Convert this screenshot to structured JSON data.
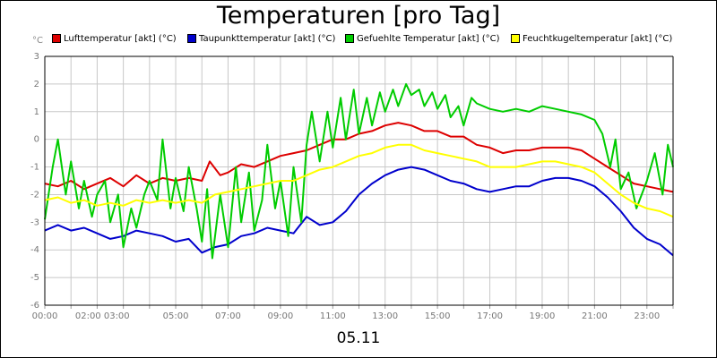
{
  "chart_data": {
    "type": "line",
    "title": "Temperaturen [pro Tag]",
    "date_label": "05.11",
    "ylabel": "°C",
    "ylim": [
      -6,
      3
    ],
    "yticks": [
      "3",
      "2",
      "1",
      "0",
      "-1",
      "-2",
      "-3",
      "-4",
      "-5",
      "-6"
    ],
    "xlim": [
      0,
      24
    ],
    "xticks": [
      {
        "h": 0,
        "label": "00:00"
      },
      {
        "h": 2.2,
        "label": "02:00 03:00"
      },
      {
        "h": 5,
        "label": "05:00"
      },
      {
        "h": 7,
        "label": "07:00"
      },
      {
        "h": 9,
        "label": "09:00"
      },
      {
        "h": 11,
        "label": "11:00"
      },
      {
        "h": 13,
        "label": "13:00"
      },
      {
        "h": 15,
        "label": "15:00"
      },
      {
        "h": 17,
        "label": "17:00"
      },
      {
        "h": 19,
        "label": "19:00"
      },
      {
        "h": 21,
        "label": "21:00"
      },
      {
        "h": 23,
        "label": "23:00"
      }
    ],
    "grid": true,
    "legend_position": "top",
    "series": [
      {
        "name": "Lufttemperatur [akt] (°C)",
        "color": "#dd0000",
        "points": [
          [
            0,
            -1.6
          ],
          [
            0.5,
            -1.7
          ],
          [
            1,
            -1.5
          ],
          [
            1.5,
            -1.8
          ],
          [
            2,
            -1.6
          ],
          [
            2.5,
            -1.4
          ],
          [
            3,
            -1.7
          ],
          [
            3.5,
            -1.3
          ],
          [
            4,
            -1.6
          ],
          [
            4.5,
            -1.4
          ],
          [
            5,
            -1.5
          ],
          [
            5.5,
            -1.4
          ],
          [
            6,
            -1.5
          ],
          [
            6.3,
            -0.8
          ],
          [
            6.7,
            -1.3
          ],
          [
            7,
            -1.2
          ],
          [
            7.5,
            -0.9
          ],
          [
            8,
            -1.0
          ],
          [
            8.5,
            -0.8
          ],
          [
            9,
            -0.6
          ],
          [
            9.5,
            -0.5
          ],
          [
            10,
            -0.4
          ],
          [
            10.5,
            -0.2
          ],
          [
            11,
            0.0
          ],
          [
            11.5,
            0.0
          ],
          [
            12,
            0.2
          ],
          [
            12.5,
            0.3
          ],
          [
            13,
            0.5
          ],
          [
            13.5,
            0.6
          ],
          [
            14,
            0.5
          ],
          [
            14.5,
            0.3
          ],
          [
            15,
            0.3
          ],
          [
            15.5,
            0.1
          ],
          [
            16,
            0.1
          ],
          [
            16.5,
            -0.2
          ],
          [
            17,
            -0.3
          ],
          [
            17.5,
            -0.5
          ],
          [
            18,
            -0.4
          ],
          [
            18.5,
            -0.4
          ],
          [
            19,
            -0.3
          ],
          [
            19.5,
            -0.3
          ],
          [
            20,
            -0.3
          ],
          [
            20.5,
            -0.4
          ],
          [
            21,
            -0.7
          ],
          [
            21.5,
            -1.0
          ],
          [
            22,
            -1.3
          ],
          [
            22.5,
            -1.6
          ],
          [
            23,
            -1.7
          ],
          [
            23.5,
            -1.8
          ],
          [
            24,
            -1.9
          ]
        ]
      },
      {
        "name": "Taupunkttemperatur [akt] (°C)",
        "color": "#0000cc",
        "points": [
          [
            0,
            -3.3
          ],
          [
            0.5,
            -3.1
          ],
          [
            1,
            -3.3
          ],
          [
            1.5,
            -3.2
          ],
          [
            2,
            -3.4
          ],
          [
            2.5,
            -3.6
          ],
          [
            3,
            -3.5
          ],
          [
            3.5,
            -3.3
          ],
          [
            4,
            -3.4
          ],
          [
            4.5,
            -3.5
          ],
          [
            5,
            -3.7
          ],
          [
            5.5,
            -3.6
          ],
          [
            6,
            -4.1
          ],
          [
            6.5,
            -3.9
          ],
          [
            7,
            -3.8
          ],
          [
            7.5,
            -3.5
          ],
          [
            8,
            -3.4
          ],
          [
            8.5,
            -3.2
          ],
          [
            9,
            -3.3
          ],
          [
            9.5,
            -3.4
          ],
          [
            10,
            -2.8
          ],
          [
            10.5,
            -3.1
          ],
          [
            11,
            -3.0
          ],
          [
            11.5,
            -2.6
          ],
          [
            12,
            -2.0
          ],
          [
            12.5,
            -1.6
          ],
          [
            13,
            -1.3
          ],
          [
            13.5,
            -1.1
          ],
          [
            14,
            -1.0
          ],
          [
            14.5,
            -1.1
          ],
          [
            15,
            -1.3
          ],
          [
            15.5,
            -1.5
          ],
          [
            16,
            -1.6
          ],
          [
            16.5,
            -1.8
          ],
          [
            17,
            -1.9
          ],
          [
            17.5,
            -1.8
          ],
          [
            18,
            -1.7
          ],
          [
            18.5,
            -1.7
          ],
          [
            19,
            -1.5
          ],
          [
            19.5,
            -1.4
          ],
          [
            20,
            -1.4
          ],
          [
            20.5,
            -1.5
          ],
          [
            21,
            -1.7
          ],
          [
            21.5,
            -2.1
          ],
          [
            22,
            -2.6
          ],
          [
            22.5,
            -3.2
          ],
          [
            23,
            -3.6
          ],
          [
            23.5,
            -3.8
          ],
          [
            24,
            -4.2
          ]
        ]
      },
      {
        "name": "Gefuehlte Temperatur [akt] (°C)",
        "color": "#00cc00",
        "points": [
          [
            0,
            -2.9
          ],
          [
            0.3,
            -1.0
          ],
          [
            0.5,
            0.0
          ],
          [
            0.8,
            -2.0
          ],
          [
            1,
            -0.8
          ],
          [
            1.3,
            -2.5
          ],
          [
            1.5,
            -1.5
          ],
          [
            1.8,
            -2.8
          ],
          [
            2,
            -2.0
          ],
          [
            2.3,
            -1.5
          ],
          [
            2.5,
            -3.0
          ],
          [
            2.8,
            -2.0
          ],
          [
            3,
            -3.9
          ],
          [
            3.3,
            -2.5
          ],
          [
            3.5,
            -3.2
          ],
          [
            3.8,
            -2.0
          ],
          [
            4,
            -1.5
          ],
          [
            4.3,
            -2.2
          ],
          [
            4.5,
            0.0
          ],
          [
            4.8,
            -2.5
          ],
          [
            5,
            -1.4
          ],
          [
            5.3,
            -2.6
          ],
          [
            5.5,
            -1.0
          ],
          [
            5.8,
            -2.5
          ],
          [
            6,
            -3.7
          ],
          [
            6.2,
            -1.8
          ],
          [
            6.4,
            -4.3
          ],
          [
            6.7,
            -2.0
          ],
          [
            7,
            -3.9
          ],
          [
            7.3,
            -1.0
          ],
          [
            7.5,
            -3.0
          ],
          [
            7.8,
            -1.2
          ],
          [
            8,
            -3.3
          ],
          [
            8.3,
            -2.2
          ],
          [
            8.5,
            -0.2
          ],
          [
            8.8,
            -2.5
          ],
          [
            9,
            -1.5
          ],
          [
            9.3,
            -3.5
          ],
          [
            9.5,
            -1.0
          ],
          [
            9.8,
            -3.0
          ],
          [
            10,
            -0.2
          ],
          [
            10.2,
            1.0
          ],
          [
            10.5,
            -0.8
          ],
          [
            10.8,
            1.0
          ],
          [
            11,
            -0.3
          ],
          [
            11.3,
            1.5
          ],
          [
            11.5,
            0.0
          ],
          [
            11.8,
            1.8
          ],
          [
            12,
            0.2
          ],
          [
            12.3,
            1.5
          ],
          [
            12.5,
            0.5
          ],
          [
            12.8,
            1.7
          ],
          [
            13,
            1.0
          ],
          [
            13.3,
            1.8
          ],
          [
            13.5,
            1.2
          ],
          [
            13.8,
            2.0
          ],
          [
            14,
            1.6
          ],
          [
            14.3,
            1.8
          ],
          [
            14.5,
            1.2
          ],
          [
            14.8,
            1.7
          ],
          [
            15,
            1.1
          ],
          [
            15.3,
            1.6
          ],
          [
            15.5,
            0.8
          ],
          [
            15.8,
            1.2
          ],
          [
            16,
            0.5
          ],
          [
            16.3,
            1.5
          ],
          [
            16.5,
            1.3
          ],
          [
            17,
            1.1
          ],
          [
            17.5,
            1.0
          ],
          [
            18,
            1.1
          ],
          [
            18.5,
            1.0
          ],
          [
            19,
            1.2
          ],
          [
            19.5,
            1.1
          ],
          [
            20,
            1.0
          ],
          [
            20.5,
            0.9
          ],
          [
            21,
            0.7
          ],
          [
            21.3,
            0.2
          ],
          [
            21.6,
            -1.0
          ],
          [
            21.8,
            0.0
          ],
          [
            22,
            -1.8
          ],
          [
            22.3,
            -1.2
          ],
          [
            22.6,
            -2.5
          ],
          [
            23,
            -1.5
          ],
          [
            23.3,
            -0.5
          ],
          [
            23.6,
            -2.0
          ],
          [
            23.8,
            -0.2
          ],
          [
            24,
            -1.0
          ]
        ]
      },
      {
        "name": "Feuchtkugeltemperatur [akt] (°C)",
        "color": "#ffff00",
        "points": [
          [
            0,
            -2.2
          ],
          [
            0.5,
            -2.1
          ],
          [
            1,
            -2.3
          ],
          [
            1.5,
            -2.2
          ],
          [
            2,
            -2.4
          ],
          [
            2.5,
            -2.3
          ],
          [
            3,
            -2.4
          ],
          [
            3.5,
            -2.2
          ],
          [
            4,
            -2.3
          ],
          [
            4.5,
            -2.2
          ],
          [
            5,
            -2.3
          ],
          [
            5.5,
            -2.2
          ],
          [
            6,
            -2.3
          ],
          [
            6.5,
            -2.0
          ],
          [
            7,
            -1.9
          ],
          [
            7.5,
            -1.8
          ],
          [
            8,
            -1.7
          ],
          [
            8.5,
            -1.6
          ],
          [
            9,
            -1.5
          ],
          [
            9.5,
            -1.5
          ],
          [
            10,
            -1.3
          ],
          [
            10.5,
            -1.1
          ],
          [
            11,
            -1.0
          ],
          [
            11.5,
            -0.8
          ],
          [
            12,
            -0.6
          ],
          [
            12.5,
            -0.5
          ],
          [
            13,
            -0.3
          ],
          [
            13.5,
            -0.2
          ],
          [
            14,
            -0.2
          ],
          [
            14.5,
            -0.4
          ],
          [
            15,
            -0.5
          ],
          [
            15.5,
            -0.6
          ],
          [
            16,
            -0.7
          ],
          [
            16.5,
            -0.8
          ],
          [
            17,
            -1.0
          ],
          [
            17.5,
            -1.0
          ],
          [
            18,
            -1.0
          ],
          [
            18.5,
            -0.9
          ],
          [
            19,
            -0.8
          ],
          [
            19.5,
            -0.8
          ],
          [
            20,
            -0.9
          ],
          [
            20.5,
            -1.0
          ],
          [
            21,
            -1.2
          ],
          [
            21.5,
            -1.6
          ],
          [
            22,
            -2.0
          ],
          [
            22.5,
            -2.3
          ],
          [
            23,
            -2.5
          ],
          [
            23.5,
            -2.6
          ],
          [
            24,
            -2.8
          ]
        ]
      }
    ]
  }
}
